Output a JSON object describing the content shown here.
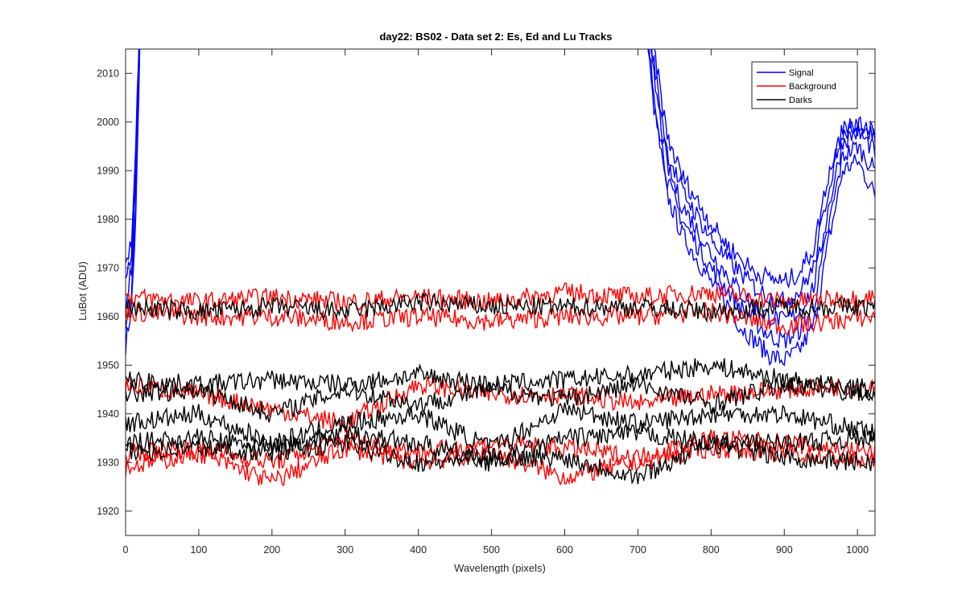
{
  "chart_data": {
    "type": "line",
    "title": "day22: BS02 - Data set 2: Es, Ed and Lu Tracks",
    "xlabel": "Wavelength (pixels)",
    "ylabel": "LuBot (ADU)",
    "xlim": [
      0,
      1024
    ],
    "ylim": [
      1915,
      2015
    ],
    "xticks": [
      0,
      100,
      200,
      300,
      400,
      500,
      600,
      700,
      800,
      900,
      1000
    ],
    "yticks": [
      1920,
      1930,
      1940,
      1950,
      1960,
      1970,
      1980,
      1990,
      2000,
      2010
    ],
    "grid": false,
    "legend_position": "top-right",
    "legend": [
      {
        "label": "Signal",
        "color": "#0000ff"
      },
      {
        "label": "Background",
        "color": "#ff0000"
      },
      {
        "label": "Darks",
        "color": "#000000"
      }
    ],
    "series_groups": [
      {
        "group": "Signal",
        "color": "#0000ff",
        "series": [
          {
            "x": [
              0,
              8,
              14,
              18,
              20,
              22,
              705,
              720,
              740,
              760,
              780,
              800,
              820,
              840,
              860,
              880,
              900,
              920,
              940,
              960,
              980,
              1000,
              1024
            ],
            "y": [
              1954,
              1962,
              1980,
              2005,
              2020,
              2030,
              2030,
              2005,
              1985,
              1977,
              1972,
              1967,
              1963,
              1958,
              1955,
              1952,
              1951,
              1953,
              1958,
              1975,
              1990,
              1992,
              1985
            ]
          },
          {
            "x": [
              0,
              8,
              14,
              18,
              20,
              22,
              705,
              720,
              740,
              760,
              780,
              800,
              820,
              840,
              860,
              880,
              900,
              920,
              940,
              960,
              980,
              1000,
              1024
            ],
            "y": [
              1958,
              1966,
              1984,
              2008,
              2022,
              2030,
              2030,
              2008,
              1988,
              1980,
              1975,
              1970,
              1966,
              1962,
              1959,
              1956,
              1955,
              1957,
              1962,
              1978,
              1993,
              1995,
              1990
            ]
          },
          {
            "x": [
              0,
              8,
              14,
              18,
              20,
              22,
              705,
              720,
              740,
              760,
              780,
              800,
              820,
              840,
              860,
              880,
              900,
              920,
              940,
              960,
              980,
              1000,
              1024
            ],
            "y": [
              1962,
              1970,
              1988,
              2011,
              2024,
              2030,
              2030,
              2011,
              1991,
              1983,
              1978,
              1973,
              1969,
              1965,
              1962,
              1960,
              1959,
              1961,
              1966,
              1982,
              1996,
              1998,
              1994
            ]
          },
          {
            "x": [
              0,
              8,
              14,
              18,
              20,
              22,
              705,
              720,
              740,
              760,
              780,
              800,
              820,
              840,
              860,
              880,
              900,
              920,
              940,
              960,
              980,
              1000,
              1024
            ],
            "y": [
              1966,
              1973,
              1991,
              2013,
              2026,
              2030,
              2030,
              2014,
              1994,
              1986,
              1981,
              1976,
              1972,
              1969,
              1966,
              1964,
              1963,
              1965,
              1970,
              1986,
              1999,
              2000,
              1997
            ]
          },
          {
            "x": [
              0,
              8,
              14,
              18,
              20,
              22,
              705,
              720,
              740,
              760,
              780,
              800,
              820,
              840,
              860,
              880,
              900,
              920,
              940,
              960,
              980,
              1000,
              1024
            ],
            "y": [
              1970,
              1976,
              1994,
              2015,
              2028,
              2030,
              2030,
              2017,
              1997,
              1989,
              1984,
              1979,
              1975,
              1972,
              1969,
              1968,
              1967,
              1969,
              1974,
              1989,
              1998,
              1999,
              1999
            ]
          }
        ]
      },
      {
        "group": "Background",
        "color": "#ff0000",
        "series": [
          {
            "x": [
              0,
              100,
              200,
              300,
              400,
              500,
              600,
              700,
              800,
              900,
              1024
            ],
            "y": [
              1964,
              1963,
              1964,
              1963,
              1964,
              1963,
              1965,
              1964,
              1965,
              1963,
              1964
            ]
          },
          {
            "x": [
              0,
              100,
              200,
              300,
              400,
              500,
              600,
              700,
              800,
              900,
              1024
            ],
            "y": [
              1961,
              1960,
              1960,
              1959,
              1960,
              1959,
              1960,
              1960,
              1961,
              1958,
              1960
            ]
          },
          {
            "x": [
              0,
              100,
              200,
              300,
              400,
              500,
              600,
              700,
              800,
              900,
              1024
            ],
            "y": [
              1946,
              1944,
              1941,
              1938,
              1946,
              1944,
              1944,
              1942,
              1944,
              1945,
              1946
            ]
          },
          {
            "x": [
              0,
              100,
              200,
              300,
              400,
              500,
              600,
              700,
              800,
              900,
              1024
            ],
            "y": [
              1929,
              1932,
              1926,
              1933,
              1930,
              1932,
              1927,
              1930,
              1933,
              1932,
              1930
            ]
          },
          {
            "x": [
              0,
              100,
              200,
              300,
              400,
              500,
              600,
              700,
              800,
              900,
              1024
            ],
            "y": [
              1932,
              1933,
              1930,
              1935,
              1932,
              1934,
              1933,
              1931,
              1935,
              1934,
              1932
            ]
          }
        ]
      },
      {
        "group": "Darks",
        "color": "#000000",
        "series": [
          {
            "x": [
              0,
              100,
              200,
              300,
              400,
              500,
              600,
              700,
              800,
              900,
              1024
            ],
            "y": [
              1962,
              1961,
              1962,
              1961,
              1963,
              1962,
              1962,
              1962,
              1961,
              1962,
              1962
            ]
          },
          {
            "x": [
              0,
              100,
              200,
              300,
              400,
              500,
              600,
              700,
              800,
              900,
              1024
            ],
            "y": [
              1947,
              1946,
              1947,
              1946,
              1948,
              1946,
              1947,
              1948,
              1950,
              1947,
              1945
            ]
          },
          {
            "x": [
              0,
              100,
              200,
              300,
              400,
              500,
              600,
              700,
              800,
              900,
              1024
            ],
            "y": [
              1944,
              1945,
              1940,
              1945,
              1942,
              1945,
              1943,
              1946,
              1942,
              1946,
              1944
            ]
          },
          {
            "x": [
              0,
              100,
              200,
              300,
              400,
              500,
              600,
              700,
              800,
              900,
              1024
            ],
            "y": [
              1938,
              1940,
              1934,
              1938,
              1940,
              1933,
              1941,
              1938,
              1940,
              1940,
              1936
            ]
          },
          {
            "x": [
              0,
              100,
              200,
              300,
              400,
              500,
              600,
              700,
              800,
              900,
              1024
            ],
            "y": [
              1934,
              1935,
              1933,
              1936,
              1934,
              1930,
              1935,
              1936,
              1934,
              1934,
              1935
            ]
          },
          {
            "x": [
              0,
              100,
              200,
              300,
              400,
              500,
              600,
              700,
              800,
              900,
              1024
            ],
            "y": [
              1932,
              1933,
              1932,
              1934,
              1930,
              1931,
              1931,
              1927,
              1934,
              1931,
              1930
            ]
          }
        ]
      }
    ]
  }
}
